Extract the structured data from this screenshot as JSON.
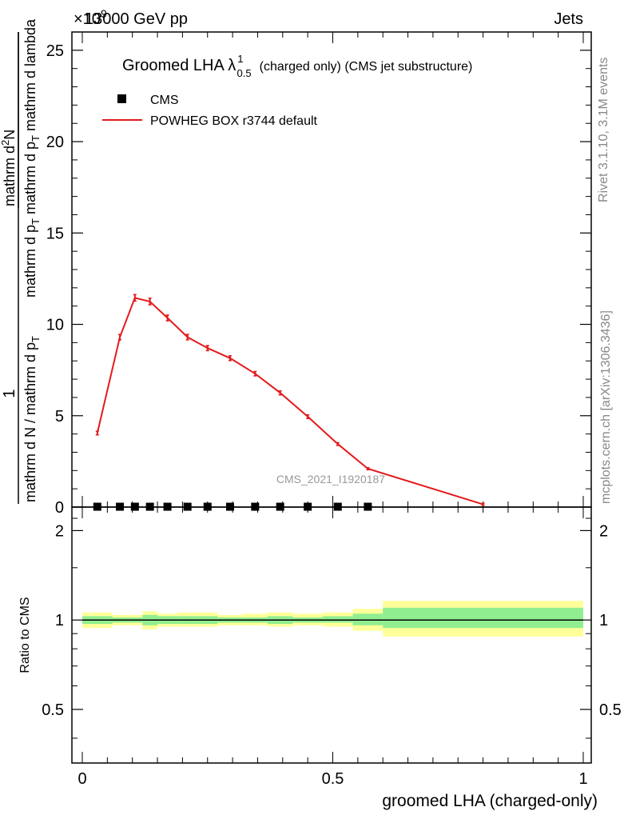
{
  "header": {
    "energy": "13000 GeV pp",
    "process": "Jets",
    "exponent_prefix": "×10",
    "exponent_value": "9"
  },
  "side_labels": {
    "rivet": "Rivet 3.1.10,  3.1M events",
    "mcplots": "mcplots.cern.ch [arXiv:1306.3436]"
  },
  "watermark": "CMS_2021_I1920187",
  "chart_data": [
    {
      "type": "line",
      "title_main": "Groomed LHA λ",
      "title_sup": "1",
      "title_sub": "0.5",
      "title_tail": "(charged only) (CMS jet substructure)",
      "ylabel_top": "1",
      "ylabel_bottom_numer": "mathrm d²N",
      "ylabel_bottom_denom": "mathrm d N / mathrm d p_T mathrm d p_T mathrm d lambda",
      "ylabel_parts": {
        "frac_top": "1",
        "frac_bottom": "mathrm d N / mathrm d p",
        "frac_bottom_sub": "T",
        "numer": "mathrm d",
        "numer_sup": "2",
        "numer_tail": "N",
        "denom_a": "mathrm d p",
        "denom_a_sub": "T",
        "denom_b": " mathrm d p",
        "denom_b_sub": "T",
        "denom_c": " mathrm d lambda"
      },
      "ylim": [
        0,
        26
      ],
      "xlim": [
        0,
        1
      ],
      "y_ticks": [
        {
          "value": 0,
          "label": "0"
        },
        {
          "value": 5,
          "label": "5"
        },
        {
          "value": 10,
          "label": "10"
        },
        {
          "value": 15,
          "label": "15"
        },
        {
          "value": 20,
          "label": "20"
        },
        {
          "value": 25,
          "label": "25"
        }
      ],
      "legend": {
        "placement": "top-left",
        "entries": [
          {
            "name": "CMS",
            "marker": "square",
            "color": "#000000"
          },
          {
            "name": "POWHEG BOX r3744 default",
            "marker": "line",
            "color": "#e41a1c"
          }
        ]
      },
      "series": [
        {
          "name": "CMS",
          "color": "#000000",
          "x": [
            0.03,
            0.075,
            0.105,
            0.135,
            0.17,
            0.21,
            0.25,
            0.295,
            0.345,
            0.395,
            0.45,
            0.51,
            0.57
          ],
          "y": [
            0.02,
            0.02,
            0.02,
            0.02,
            0.02,
            0.02,
            0.02,
            0.02,
            0.02,
            0.02,
            0.02,
            0.02,
            0.02
          ]
        },
        {
          "name": "POWHEG BOX r3744 default",
          "color": "#e41a1c",
          "x": [
            0.03,
            0.075,
            0.105,
            0.135,
            0.17,
            0.21,
            0.25,
            0.295,
            0.345,
            0.395,
            0.45,
            0.51,
            0.57,
            0.8
          ],
          "y": [
            4.05,
            9.3,
            11.45,
            11.25,
            10.35,
            9.3,
            8.7,
            8.15,
            7.3,
            6.25,
            4.95,
            3.45,
            2.1,
            0.15
          ],
          "yerr": [
            0.1,
            0.15,
            0.18,
            0.18,
            0.16,
            0.15,
            0.14,
            0.13,
            0.12,
            0.11,
            0.1,
            0.08,
            0.06,
            0.05
          ]
        }
      ]
    },
    {
      "type": "area",
      "ylabel": "Ratio to CMS",
      "xlabel": "groomed LHA (charged-only)",
      "xlim": [
        0,
        1
      ],
      "ylim": [
        0.33,
        2.4
      ],
      "log_scale_y": true,
      "reference_line": 1,
      "y_ticks": [
        {
          "value": 0.5,
          "label": "0.5"
        },
        {
          "value": 1,
          "label": "1"
        },
        {
          "value": 2,
          "label": "2"
        }
      ],
      "x_ticks": [
        {
          "value": 0,
          "label": "0"
        },
        {
          "value": 0.5,
          "label": "0.5"
        },
        {
          "value": 1,
          "label": "1"
        }
      ],
      "bands": [
        {
          "x0": 0.0,
          "x1": 0.06,
          "inner": [
            0.97,
            1.03
          ],
          "outer": [
            0.94,
            1.06
          ]
        },
        {
          "x0": 0.06,
          "x1": 0.09,
          "inner": [
            0.98,
            1.02
          ],
          "outer": [
            0.96,
            1.04
          ]
        },
        {
          "x0": 0.09,
          "x1": 0.12,
          "inner": [
            0.98,
            1.02
          ],
          "outer": [
            0.96,
            1.04
          ]
        },
        {
          "x0": 0.12,
          "x1": 0.15,
          "inner": [
            0.96,
            1.04
          ],
          "outer": [
            0.93,
            1.07
          ]
        },
        {
          "x0": 0.15,
          "x1": 0.19,
          "inner": [
            0.97,
            1.03
          ],
          "outer": [
            0.95,
            1.05
          ]
        },
        {
          "x0": 0.19,
          "x1": 0.23,
          "inner": [
            0.97,
            1.03
          ],
          "outer": [
            0.95,
            1.06
          ]
        },
        {
          "x0": 0.23,
          "x1": 0.27,
          "inner": [
            0.97,
            1.03
          ],
          "outer": [
            0.95,
            1.06
          ]
        },
        {
          "x0": 0.27,
          "x1": 0.32,
          "inner": [
            0.98,
            1.02
          ],
          "outer": [
            0.96,
            1.04
          ]
        },
        {
          "x0": 0.32,
          "x1": 0.37,
          "inner": [
            0.98,
            1.02
          ],
          "outer": [
            0.96,
            1.05
          ]
        },
        {
          "x0": 0.37,
          "x1": 0.42,
          "inner": [
            0.97,
            1.03
          ],
          "outer": [
            0.95,
            1.06
          ]
        },
        {
          "x0": 0.42,
          "x1": 0.48,
          "inner": [
            0.98,
            1.02
          ],
          "outer": [
            0.96,
            1.05
          ]
        },
        {
          "x0": 0.48,
          "x1": 0.54,
          "inner": [
            0.98,
            1.03
          ],
          "outer": [
            0.95,
            1.06
          ]
        },
        {
          "x0": 0.54,
          "x1": 0.6,
          "inner": [
            0.96,
            1.05
          ],
          "outer": [
            0.92,
            1.09
          ]
        },
        {
          "x0": 0.6,
          "x1": 1.0,
          "inner": [
            0.94,
            1.1
          ],
          "outer": [
            0.88,
            1.16
          ]
        }
      ]
    }
  ]
}
